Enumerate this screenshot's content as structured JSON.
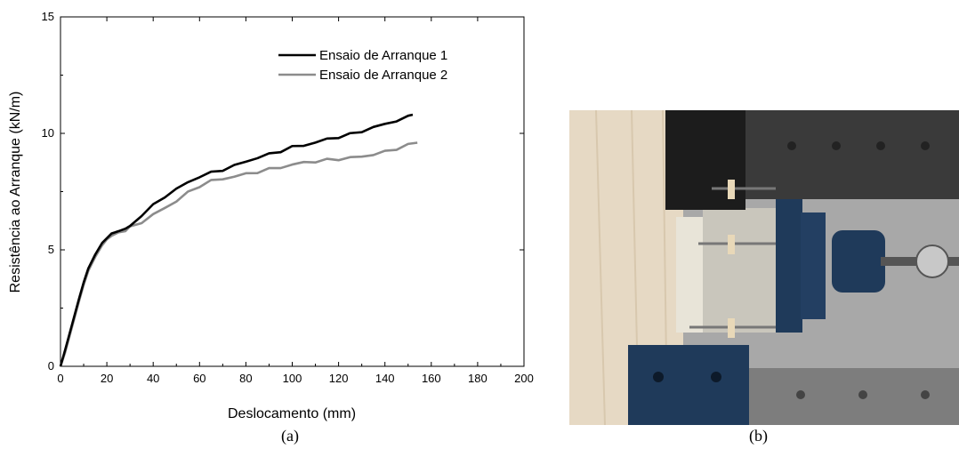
{
  "chart_data": {
    "type": "line",
    "title": "",
    "xlabel": "Deslocamento (mm)",
    "ylabel": "Resistência ao Arranque (kN/m)",
    "xlim": [
      0,
      200
    ],
    "ylim": [
      0,
      15
    ],
    "xticks": [
      "0",
      "20",
      "40",
      "60",
      "80",
      "100",
      "120",
      "140",
      "160",
      "180",
      "200"
    ],
    "yticks": [
      "0",
      "5",
      "10",
      "15"
    ],
    "grid": false,
    "legend_position": "top-right",
    "series": [
      {
        "name": "Ensaio de Arranque 1",
        "color": "#000000",
        "x": [
          0,
          2,
          5,
          8,
          10,
          12,
          15,
          18,
          20,
          22,
          25,
          28,
          30,
          35,
          40,
          45,
          50,
          55,
          60,
          65,
          70,
          75,
          80,
          85,
          90,
          95,
          100,
          105,
          110,
          115,
          120,
          125,
          130,
          135,
          140,
          145,
          150,
          152
        ],
        "y": [
          0,
          0.7,
          1.8,
          2.9,
          3.6,
          4.2,
          4.8,
          5.3,
          5.5,
          5.7,
          5.8,
          5.9,
          6.0,
          6.5,
          6.9,
          7.3,
          7.6,
          7.9,
          8.15,
          8.3,
          8.45,
          8.6,
          8.8,
          8.95,
          9.1,
          9.25,
          9.4,
          9.5,
          9.6,
          9.75,
          9.85,
          9.95,
          10.1,
          10.25,
          10.4,
          10.55,
          10.7,
          10.8
        ]
      },
      {
        "name": "Ensaio de Arranque 2",
        "color": "#8c8c8c",
        "x": [
          0,
          2,
          5,
          8,
          10,
          12,
          15,
          18,
          20,
          22,
          25,
          28,
          30,
          35,
          40,
          45,
          50,
          55,
          60,
          65,
          70,
          75,
          80,
          85,
          90,
          95,
          100,
          105,
          110,
          115,
          120,
          125,
          130,
          135,
          140,
          145,
          150,
          154
        ],
        "y": [
          0,
          0.6,
          1.7,
          2.8,
          3.5,
          4.1,
          4.7,
          5.2,
          5.45,
          5.6,
          5.75,
          5.85,
          5.95,
          6.2,
          6.5,
          6.8,
          7.1,
          7.45,
          7.75,
          7.95,
          8.05,
          8.15,
          8.25,
          8.35,
          8.45,
          8.55,
          8.65,
          8.75,
          8.8,
          8.85,
          8.9,
          8.95,
          9.0,
          9.1,
          9.2,
          9.35,
          9.5,
          9.6
        ]
      }
    ]
  },
  "captions": {
    "a": "(a)",
    "b": "(b)"
  },
  "photo": {
    "icon": "pullout-test-rig-photo-icon",
    "colors": {
      "wood": "#e4d6c0",
      "steel": "#1f3a5a",
      "frame": "#2a2a2a",
      "floor": "#9a9a9a"
    }
  }
}
